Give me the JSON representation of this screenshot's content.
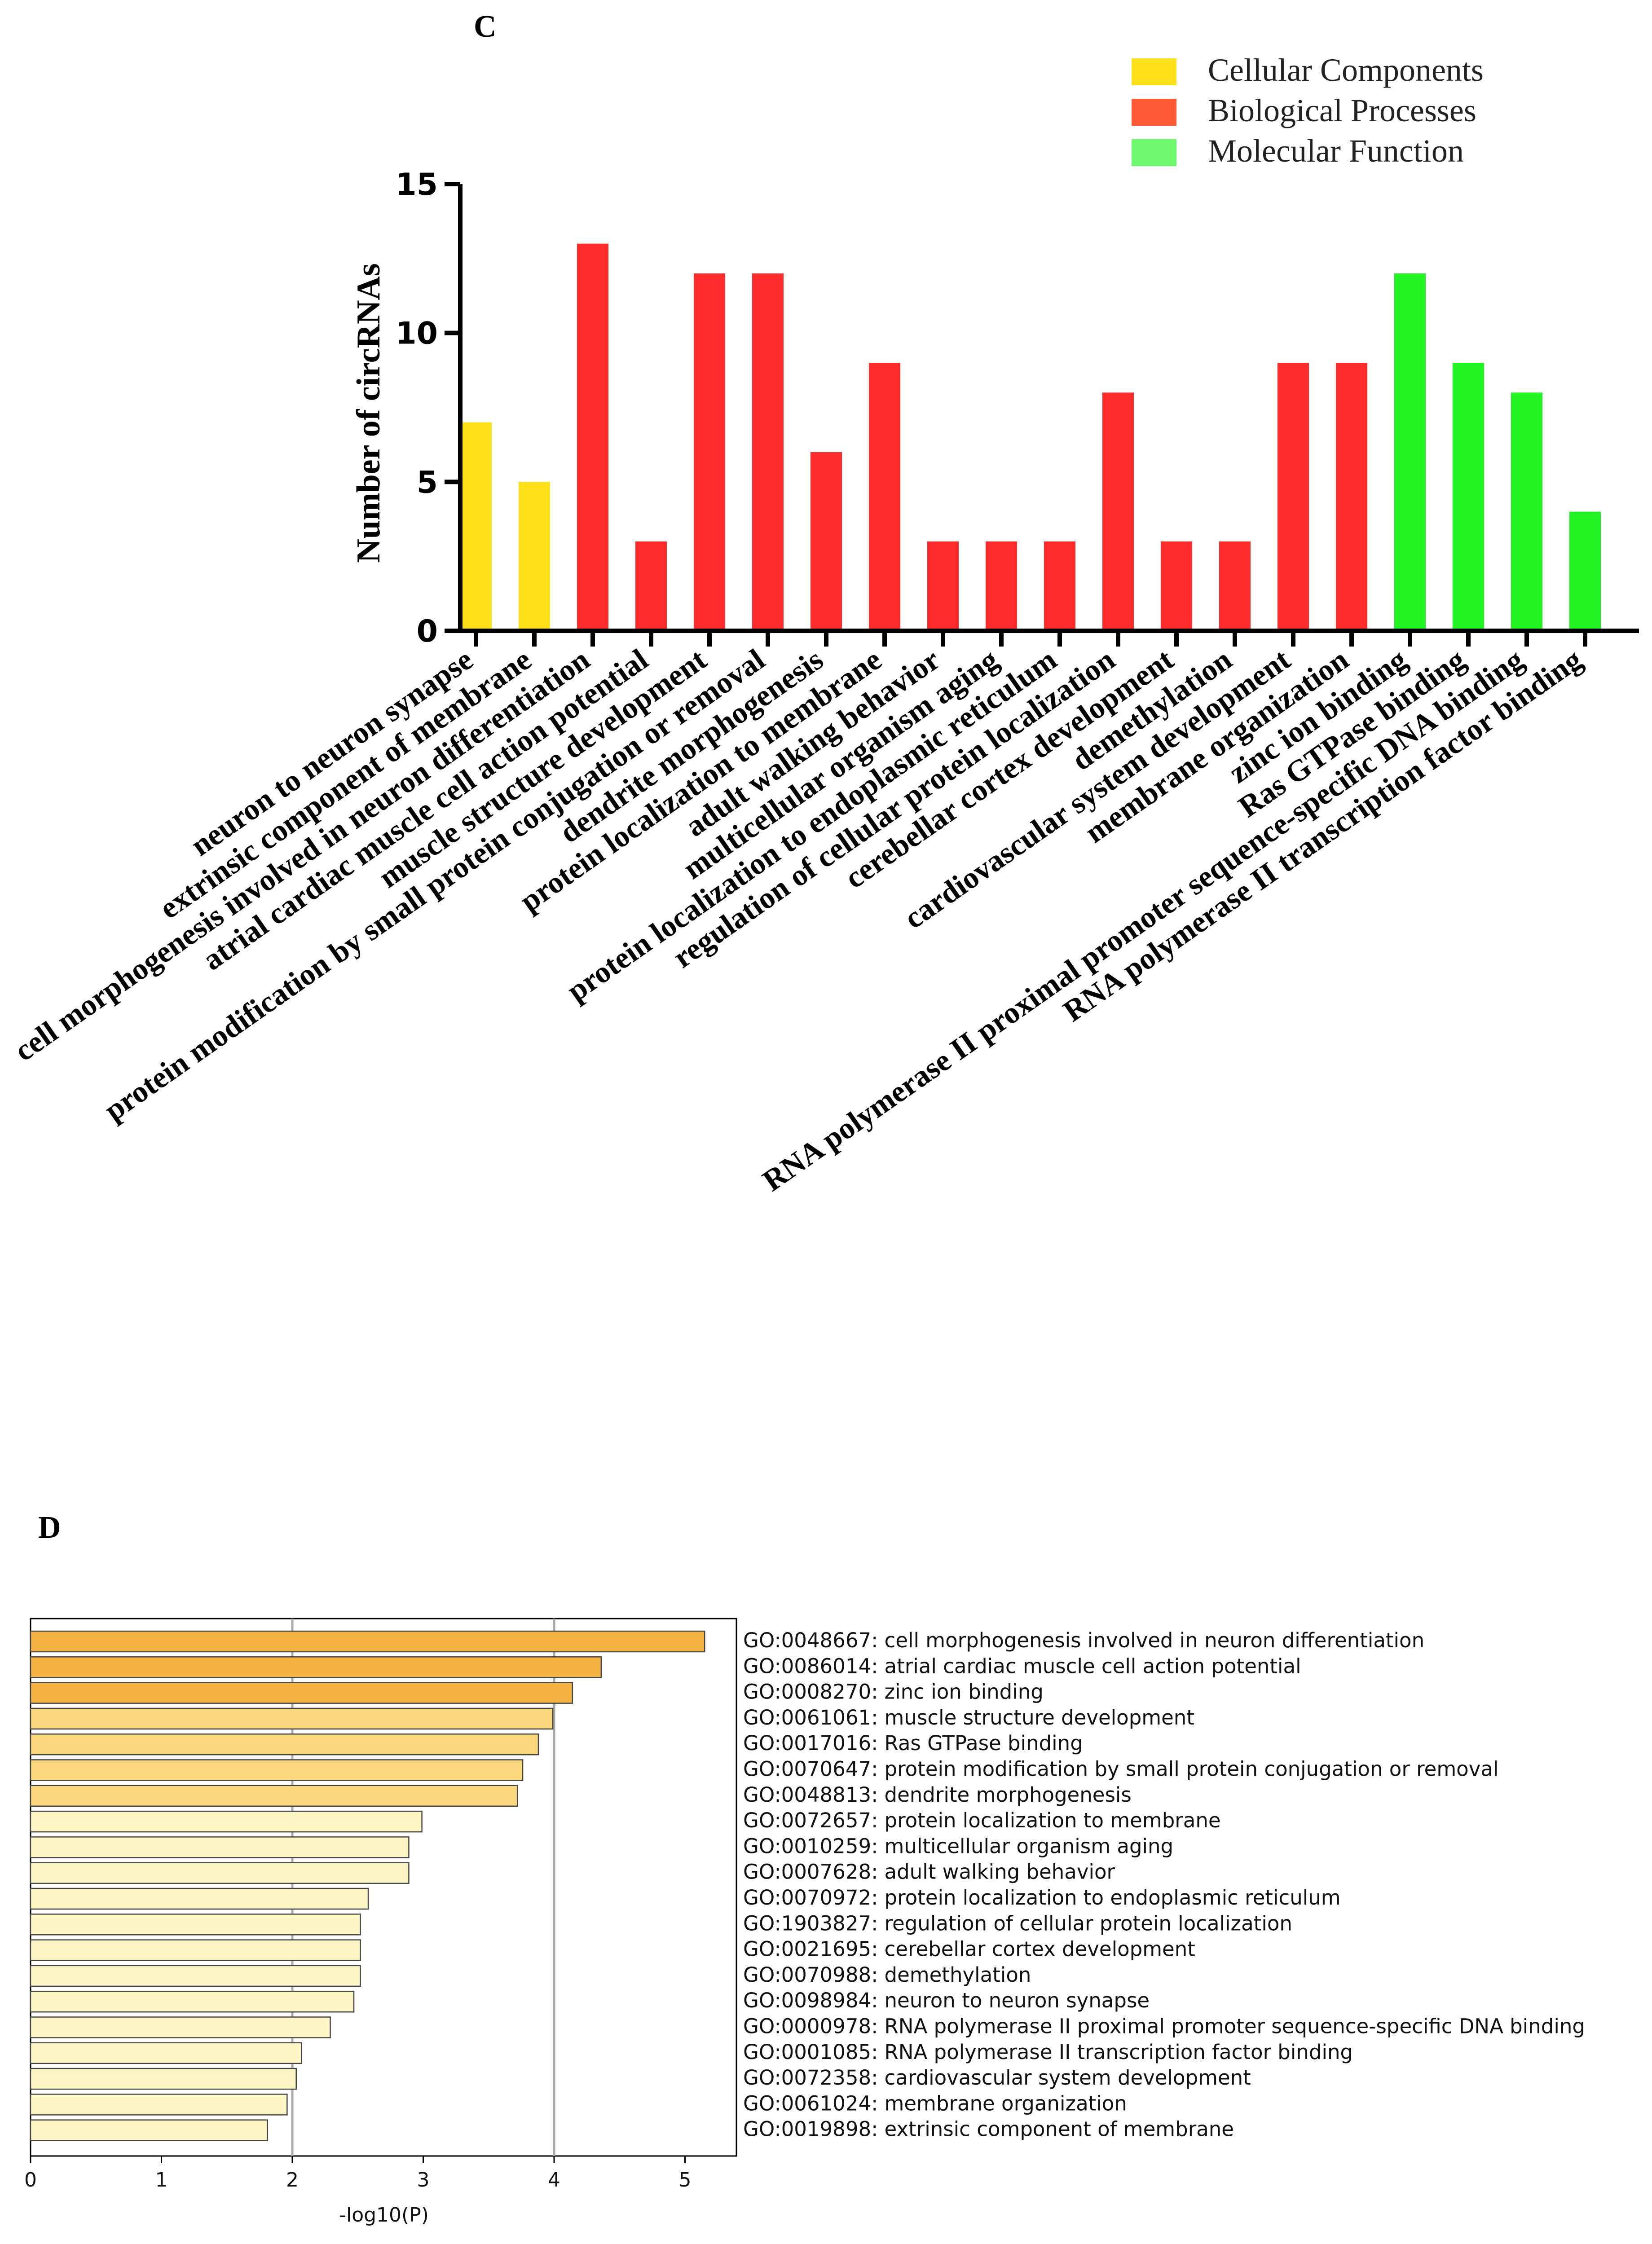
{
  "panels": {
    "c_label": "C",
    "d_label": "D"
  },
  "colors": {
    "cellular": "#FFE01B",
    "biological": "#FF2A2A",
    "molecular": "#22F322",
    "legend_cellular": "#FFE01B",
    "legend_biological": "#FF5A36",
    "legend_molecular": "#6EF86E"
  },
  "chart_data": [
    {
      "type": "bar",
      "panel": "C",
      "ylabel": "Number of circRNAs",
      "ylim": [
        0,
        15
      ],
      "yticks": [
        0,
        5,
        10,
        15
      ],
      "legend": {
        "position": "top-right",
        "entries": [
          {
            "label": "Cellular Components",
            "color_key": "legend_cellular"
          },
          {
            "label": "Biological Processes",
            "color_key": "legend_biological"
          },
          {
            "label": "Molecular Function",
            "color_key": "legend_molecular"
          }
        ]
      },
      "categories": [
        "neuron to neuron synapse",
        "extrinsic component of membrane",
        "cell morphogenesis involved in neuron differentiation",
        "atrial cardiac muscle cell action potential",
        "muscle structure development",
        "protein modification by small protein conjugation or removal",
        "dendrite morphogenesis",
        "protein localization to membrane",
        "adult walking behavior",
        "multicellular organism aging",
        "protein localization to endoplasmic reticulum",
        "regulation of cellular protein localization",
        "cerebellar cortex development",
        "demethylation",
        "cardiovascular system development",
        "membrane organization",
        "zinc ion binding",
        "Ras GTPase binding",
        "RNA polymerase II proximal promoter sequence-specific DNA binding",
        "RNA polymerase II transcription factor binding"
      ],
      "values": [
        7,
        5,
        13,
        3,
        12,
        12,
        6,
        9,
        3,
        3,
        3,
        8,
        3,
        3,
        9,
        9,
        12,
        9,
        8,
        4
      ],
      "groups": [
        "cellular",
        "cellular",
        "biological",
        "biological",
        "biological",
        "biological",
        "biological",
        "biological",
        "biological",
        "biological",
        "biological",
        "biological",
        "biological",
        "biological",
        "biological",
        "biological",
        "molecular",
        "molecular",
        "molecular",
        "molecular"
      ]
    },
    {
      "type": "bar",
      "panel": "D",
      "orientation": "horizontal",
      "xlabel": "-log10(P)",
      "xlim": [
        0,
        5.4
      ],
      "xticks": [
        0,
        1,
        2,
        3,
        4,
        5
      ],
      "grid": "vertical lines at 2 and 4",
      "categories": [
        "GO:0048667: cell morphogenesis involved in neuron differentiation",
        "GO:0086014: atrial cardiac muscle cell action potential",
        "GO:0008270: zinc ion binding",
        "GO:0061061: muscle structure development",
        "GO:0017016: Ras GTPase binding",
        "GO:0070647: protein modification by small protein conjugation or removal",
        "GO:0048813: dendrite morphogenesis",
        "GO:0072657: protein localization to membrane",
        "GO:0010259: multicellular organism aging",
        "GO:0007628: adult walking behavior",
        "GO:0070972: protein localization to endoplasmic reticulum",
        "GO:1903827: regulation of cellular protein localization",
        "GO:0021695: cerebellar cortex development",
        "GO:0070988: demethylation",
        "GO:0098984: neuron to neuron synapse",
        "GO:0000978: RNA polymerase II proximal promoter sequence-specific DNA binding",
        "GO:0001085: RNA polymerase II transcription factor binding",
        "GO:0072358: cardiovascular system development",
        "GO:0061024: membrane organization",
        "GO:0019898: extrinsic component of membrane"
      ],
      "values": [
        5.15,
        4.36,
        4.14,
        3.99,
        3.88,
        3.76,
        3.72,
        2.99,
        2.89,
        2.89,
        2.58,
        2.52,
        2.52,
        2.52,
        2.47,
        2.29,
        2.07,
        2.03,
        1.96,
        1.81
      ],
      "fills": [
        "#F5B343",
        "#F5B343",
        "#F5B343",
        "#FAD67D",
        "#FAD67D",
        "#FAD67D",
        "#FAD67D",
        "#FDF5C4",
        "#FDF5C4",
        "#FDF5C4",
        "#FDF5C4",
        "#FDF5C4",
        "#FDF5C4",
        "#FDF5C4",
        "#FDF5C4",
        "#FDF5C4",
        "#FDF5C4",
        "#FDF5C4",
        "#FDF5C4",
        "#FDF5C4"
      ]
    }
  ]
}
